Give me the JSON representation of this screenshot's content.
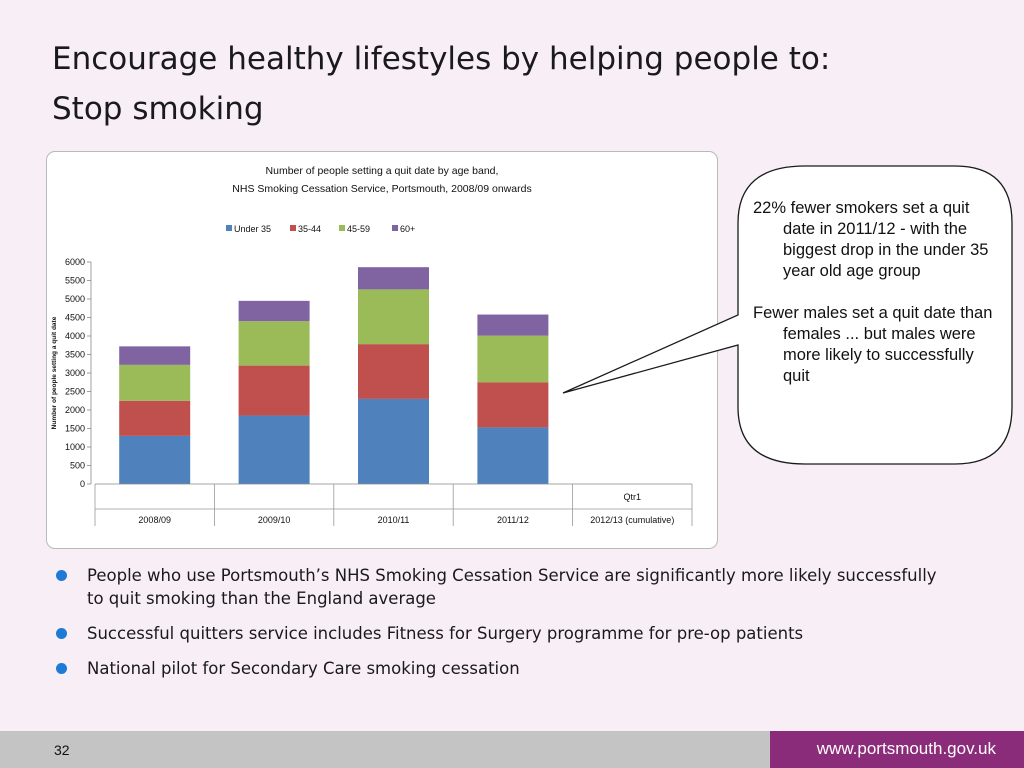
{
  "slide": {
    "title_line1": "Encourage healthy lifestyles by helping people to:",
    "title_line2": "Stop smoking",
    "page_number": "32",
    "website": "www.portsmouth.gov.uk"
  },
  "callout": {
    "para1": "22% fewer smokers set a quit date in 2011/12 - with the biggest drop in the under 35 year old age group",
    "para2": "Fewer males set a quit date than females ... but males were more likely to successfully quit"
  },
  "bullets": [
    "People who use Portsmouth’s NHS Smoking Cessation Service are significantly more likely successfully to quit smoking than the England average",
    "Successful quitters service includes Fitness for Surgery programme for pre-op patients",
    "National pilot for Secondary Care smoking cessation"
  ],
  "colors": {
    "series": [
      "#4f81bd",
      "#c0504d",
      "#9bbb59",
      "#8064a2"
    ],
    "bullet": "#1f7ad6",
    "footer_right": "#8b2c7a",
    "footer_left": "#c4c4c4"
  },
  "chart_data": {
    "type": "bar",
    "stacked": true,
    "title": "Number of people setting a quit date by age band,",
    "subtitle": "NHS Smoking Cessation Service, Portsmouth, 2008/09 onwards",
    "ylabel": "Number of people setting a quit date",
    "xlabel": "",
    "ylim": [
      0,
      6000
    ],
    "yticks": [
      0,
      500,
      1000,
      1500,
      2000,
      2500,
      3000,
      3500,
      4000,
      4500,
      5000,
      5500,
      6000
    ],
    "categories": [
      "2008/09",
      "2009/10",
      "2010/11",
      "2011/12",
      "2012/13 (cumulative)"
    ],
    "sub_categories": [
      "",
      "",
      "",
      "",
      "Qtr1"
    ],
    "legend_position": "top",
    "series": [
      {
        "name": "Under 35",
        "values": [
          1300,
          1850,
          2300,
          1530,
          0
        ]
      },
      {
        "name": "35-44",
        "values": [
          950,
          1350,
          1480,
          1220,
          0
        ]
      },
      {
        "name": "45-59",
        "values": [
          970,
          1200,
          1480,
          1260,
          0
        ]
      },
      {
        "name": "60+",
        "values": [
          500,
          550,
          600,
          570,
          0
        ]
      }
    ]
  }
}
